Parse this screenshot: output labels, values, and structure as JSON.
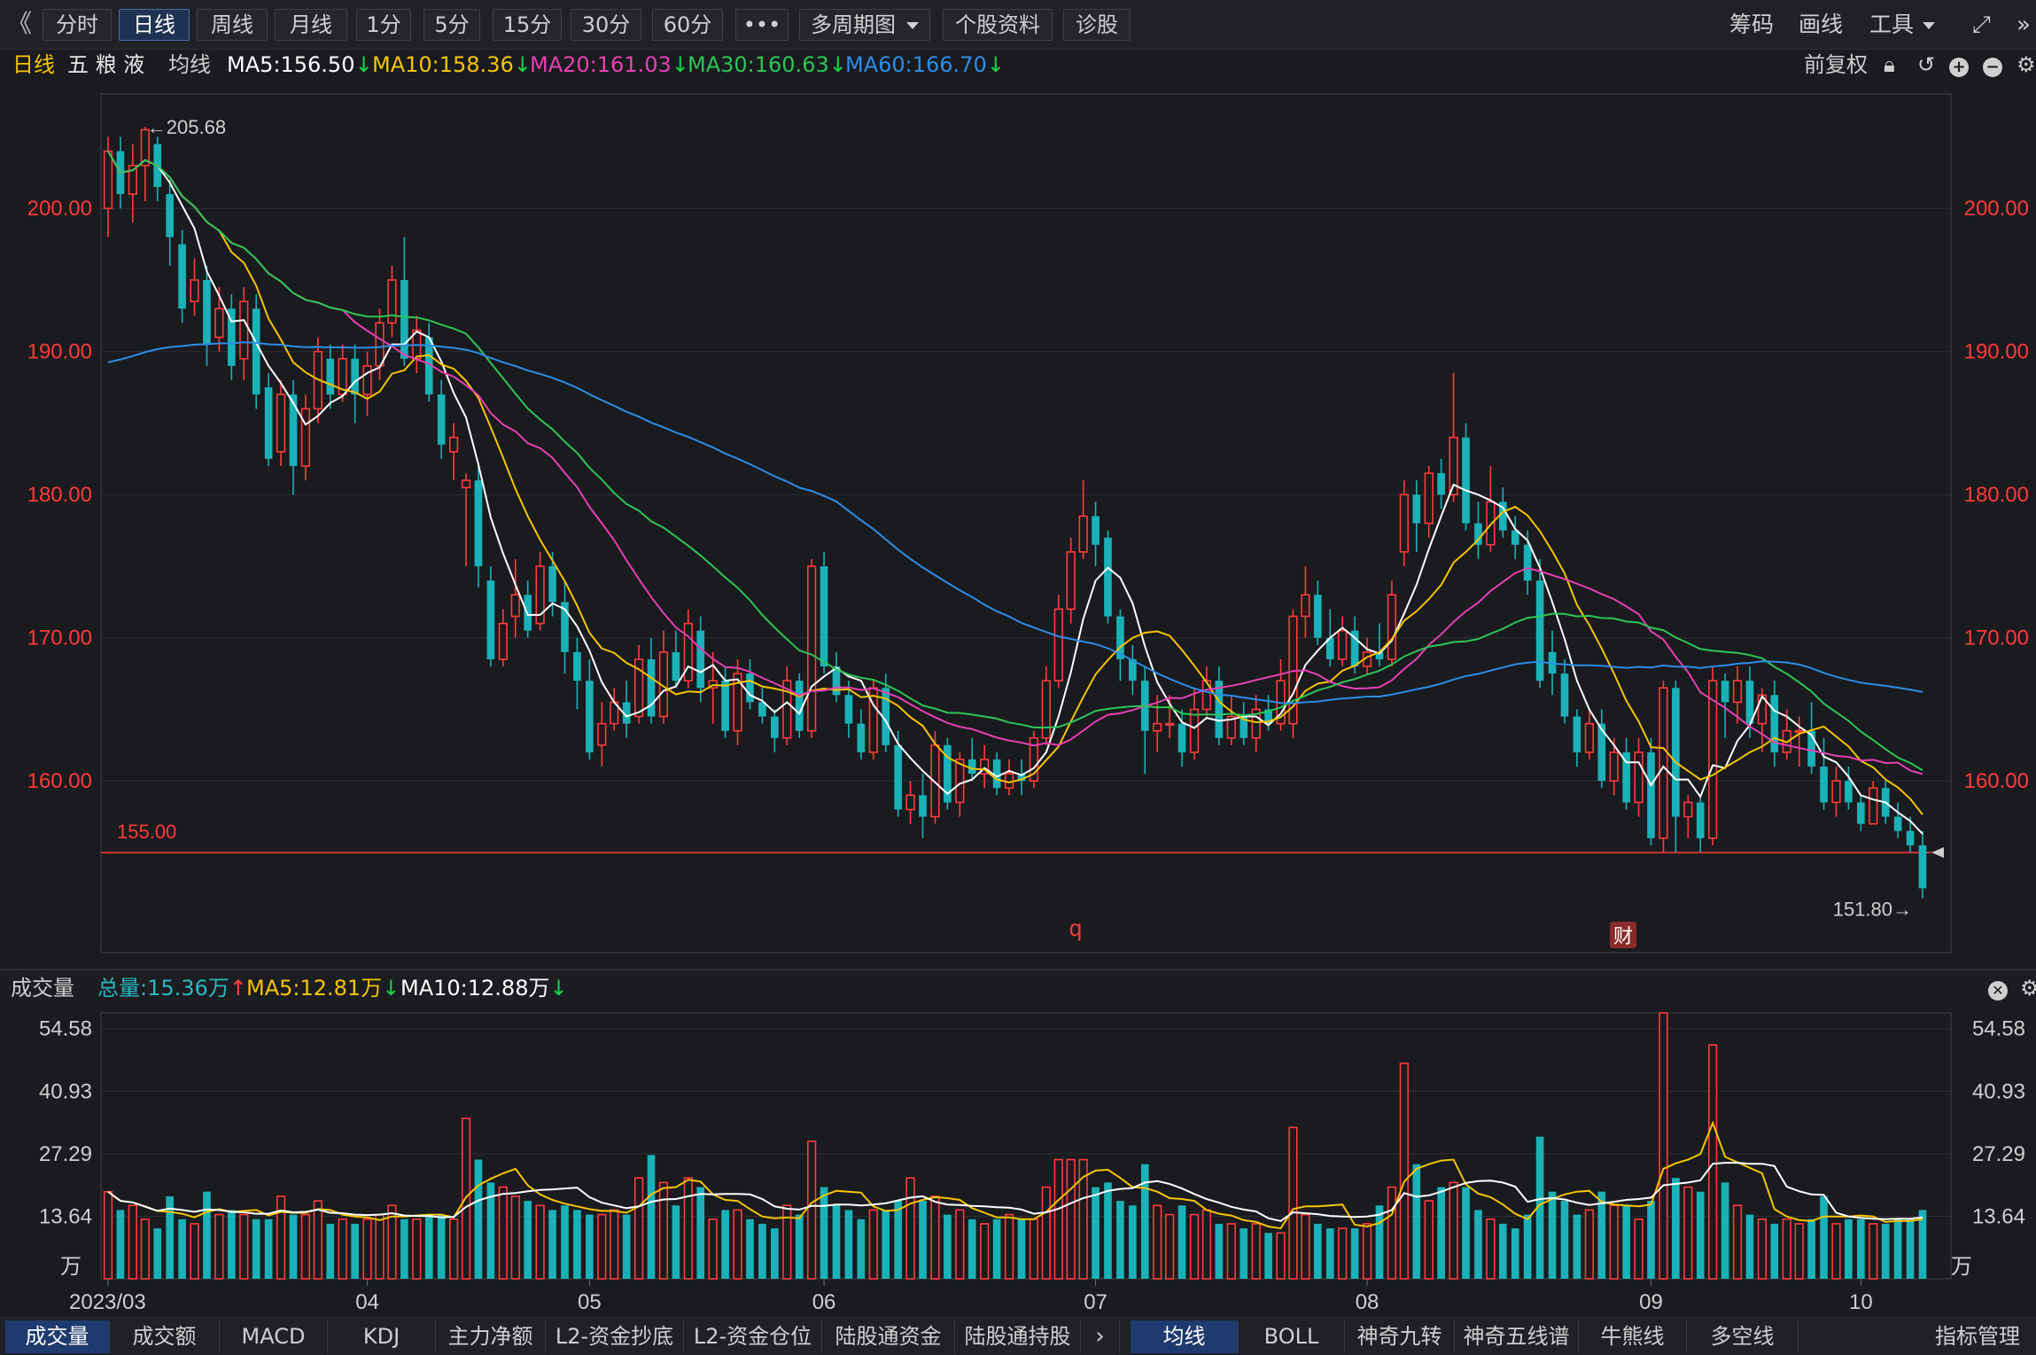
{
  "toolbar": {
    "back": "《",
    "buttons": [
      "分时",
      "日线",
      "周线",
      "月线",
      "1分",
      "5分",
      "15分",
      "30分",
      "60分",
      "•••",
      "多周期图",
      "个股资料",
      "诊股"
    ],
    "right": [
      "筹码",
      "画线",
      "工具"
    ]
  },
  "info": {
    "period": "日线",
    "stock_name": "五 粮 液",
    "ma_label": "均线",
    "ma5": "MA5:156.50",
    "ma10": "MA10:158.36",
    "ma20": "MA20:161.03",
    "ma30": "MA30:160.63",
    "ma60": "MA60:166.70",
    "adjust": "前复权"
  },
  "colors": {
    "up": "#ff3b3b",
    "down": "#1ab2b8",
    "ma5": "#ffffff",
    "ma10": "#f5c400",
    "ma20": "#e640b4",
    "ma30": "#2ec456",
    "ma60": "#2d8de6",
    "axis": "#ff3a3a",
    "grid": "#2e2f35"
  },
  "price_axis": {
    "labels": [
      "200.00",
      "190.00",
      "180.00",
      "170.00",
      "160.00"
    ],
    "values": [
      200,
      190,
      180,
      170,
      160
    ]
  },
  "annotations": {
    "high": "←205.68",
    "low": "151.80→",
    "support": "155.00",
    "marker_q": "q",
    "marker_cai": "财"
  },
  "volume": {
    "title": "成交量",
    "total": "总量:15.36万",
    "ma5": "MA5:12.81万",
    "ma10": "MA10:12.88万",
    "axis_labels": [
      "54.58",
      "40.93",
      "27.29",
      "13.64",
      "万"
    ],
    "axis_values": [
      54.58,
      40.93,
      27.29,
      13.64
    ]
  },
  "x_axis": {
    "labels": [
      "2023/03",
      "04",
      "05",
      "06",
      "07",
      "08",
      "09",
      "10"
    ]
  },
  "tabs_left": [
    "成交量",
    "成交额",
    "MACD",
    "KDJ",
    "主力净额",
    "L2-资金抄底",
    "L2-资金仓位",
    "陆股通资金",
    "陆股通持股"
  ],
  "tabs_right": [
    "均线",
    "BOLL",
    "神奇九转",
    "神奇五线谱",
    "牛熊线",
    "多空线"
  ],
  "tabs_manage": "指标管理",
  "chart_data": {
    "type": "candlestick",
    "title": "五粮液 日线",
    "ylim": [
      148,
      208
    ],
    "days": [
      [
        200.0,
        204.0,
        205.0,
        198.0,
        19
      ],
      [
        204.0,
        201.0,
        205.0,
        200.0,
        15
      ],
      [
        201.0,
        203.0,
        204.5,
        199.0,
        16
      ],
      [
        203.0,
        205.5,
        205.7,
        200.5,
        13
      ],
      [
        204.5,
        201.5,
        205.0,
        200.5,
        11
      ],
      [
        201.0,
        198.0,
        202.0,
        196.0,
        18
      ],
      [
        197.5,
        193.0,
        198.5,
        192.0,
        13
      ],
      [
        193.5,
        195.0,
        196.5,
        192.5,
        12
      ],
      [
        195.0,
        190.5,
        196.0,
        189.0,
        19
      ],
      [
        191.0,
        193.0,
        194.5,
        190.0,
        14
      ],
      [
        193.0,
        189.0,
        194.0,
        188.0,
        15
      ],
      [
        189.5,
        193.5,
        194.5,
        188.0,
        14
      ],
      [
        193.0,
        187.0,
        194.0,
        186.0,
        13
      ],
      [
        187.5,
        182.5,
        188.5,
        182.0,
        13
      ],
      [
        183.0,
        187.0,
        188.0,
        182.0,
        18
      ],
      [
        187.0,
        182.0,
        188.0,
        180.0,
        14
      ],
      [
        182.0,
        186.0,
        187.0,
        181.0,
        14
      ],
      [
        186.0,
        190.0,
        191.0,
        185.0,
        17
      ],
      [
        189.5,
        187.0,
        190.5,
        186.0,
        12
      ],
      [
        187.0,
        189.5,
        190.5,
        186.5,
        13
      ],
      [
        189.5,
        187.0,
        190.5,
        185.0,
        12
      ],
      [
        187.0,
        189.0,
        190.0,
        185.5,
        13
      ],
      [
        189.0,
        192.0,
        193.0,
        188.0,
        14
      ],
      [
        192.0,
        195.0,
        196.0,
        191.0,
        16
      ],
      [
        195.0,
        189.5,
        198.0,
        189.0,
        13
      ],
      [
        189.5,
        191.5,
        192.5,
        188.5,
        13
      ],
      [
        191.0,
        187.0,
        192.0,
        186.5,
        14
      ],
      [
        187.0,
        183.5,
        188.0,
        182.5,
        14
      ],
      [
        183.0,
        184.0,
        185.0,
        181.0,
        13
      ],
      [
        180.5,
        181.0,
        181.5,
        175.0,
        35
      ],
      [
        181.0,
        175.0,
        182.0,
        173.5,
        26
      ],
      [
        174.0,
        168.5,
        175.0,
        168.0,
        21
      ],
      [
        168.5,
        171.0,
        172.0,
        168.0,
        20
      ],
      [
        171.5,
        173.0,
        175.5,
        170.0,
        18
      ],
      [
        173.0,
        170.5,
        174.0,
        170.0,
        17
      ],
      [
        171.0,
        175.0,
        176.0,
        170.5,
        16
      ],
      [
        175.0,
        172.5,
        176.0,
        171.5,
        15
      ],
      [
        172.5,
        169.0,
        174.0,
        167.5,
        16
      ],
      [
        169.0,
        167.0,
        170.0,
        165.0,
        15
      ],
      [
        167.0,
        162.0,
        168.5,
        161.5,
        14
      ],
      [
        162.5,
        164.0,
        165.5,
        161.0,
        14
      ],
      [
        164.0,
        165.5,
        166.5,
        163.5,
        15
      ],
      [
        165.5,
        164.0,
        167.0,
        163.0,
        14
      ],
      [
        164.5,
        168.5,
        169.5,
        164.0,
        22
      ],
      [
        168.5,
        164.5,
        170.0,
        164.0,
        27
      ],
      [
        164.5,
        169.0,
        170.5,
        164.0,
        21
      ],
      [
        169.0,
        167.0,
        170.5,
        166.5,
        16
      ],
      [
        167.0,
        171.0,
        172.0,
        166.5,
        22
      ],
      [
        170.5,
        166.5,
        171.5,
        165.5,
        20
      ],
      [
        166.5,
        167.0,
        169.0,
        164.0,
        13
      ],
      [
        167.0,
        163.5,
        168.0,
        163.0,
        15
      ],
      [
        163.5,
        167.5,
        168.5,
        162.5,
        15
      ],
      [
        167.5,
        165.5,
        168.5,
        165.0,
        13
      ],
      [
        165.5,
        164.5,
        166.5,
        164.0,
        12
      ],
      [
        164.5,
        163.0,
        165.0,
        162.0,
        11
      ],
      [
        163.0,
        167.0,
        168.0,
        162.5,
        16
      ],
      [
        167.0,
        163.5,
        167.5,
        163.0,
        14
      ],
      [
        163.5,
        175.0,
        175.5,
        163.0,
        30
      ],
      [
        175.0,
        168.0,
        176.0,
        167.5,
        20
      ],
      [
        168.0,
        166.0,
        169.0,
        165.5,
        16
      ],
      [
        166.0,
        164.0,
        167.0,
        163.0,
        15
      ],
      [
        164.0,
        162.0,
        165.0,
        161.5,
        13
      ],
      [
        162.0,
        166.5,
        167.0,
        161.5,
        15
      ],
      [
        166.5,
        162.5,
        167.5,
        162.0,
        15
      ],
      [
        162.5,
        158.0,
        163.5,
        157.5,
        17
      ],
      [
        158.0,
        159.0,
        160.0,
        157.0,
        22
      ],
      [
        159.0,
        157.5,
        160.5,
        156.0,
        17
      ],
      [
        157.5,
        162.5,
        163.5,
        157.0,
        18
      ],
      [
        162.5,
        158.5,
        163.0,
        158.0,
        14
      ],
      [
        158.5,
        161.5,
        162.0,
        157.5,
        15
      ],
      [
        161.5,
        160.5,
        163.0,
        160.0,
        13
      ],
      [
        160.5,
        161.5,
        162.5,
        159.5,
        12
      ],
      [
        161.5,
        159.5,
        162.0,
        159.0,
        13
      ],
      [
        159.5,
        160.5,
        161.5,
        159.0,
        14
      ],
      [
        160.5,
        160.0,
        161.5,
        159.0,
        13
      ],
      [
        160.0,
        163.0,
        163.5,
        159.5,
        13
      ],
      [
        163.0,
        167.0,
        168.0,
        162.5,
        20
      ],
      [
        167.0,
        172.0,
        173.0,
        166.5,
        26
      ],
      [
        172.0,
        176.0,
        177.0,
        171.0,
        26
      ],
      [
        176.0,
        178.5,
        181.0,
        175.5,
        26
      ],
      [
        178.5,
        176.5,
        179.5,
        175.0,
        20
      ],
      [
        177.0,
        171.5,
        177.5,
        171.0,
        21
      ],
      [
        171.5,
        168.5,
        172.0,
        167.0,
        17
      ],
      [
        168.5,
        167.0,
        169.5,
        166.0,
        16
      ],
      [
        167.0,
        163.5,
        168.0,
        160.5,
        25
      ],
      [
        163.5,
        164.0,
        166.0,
        162.0,
        16
      ],
      [
        164.0,
        164.0,
        166.0,
        163.0,
        14
      ],
      [
        164.0,
        162.0,
        165.0,
        161.0,
        16
      ],
      [
        162.0,
        165.0,
        166.5,
        161.5,
        14
      ],
      [
        165.0,
        167.0,
        168.0,
        164.5,
        15
      ],
      [
        167.0,
        163.0,
        168.0,
        162.5,
        12
      ],
      [
        163.0,
        164.5,
        166.0,
        162.5,
        12
      ],
      [
        164.5,
        163.0,
        165.5,
        162.5,
        11
      ],
      [
        163.0,
        165.0,
        166.0,
        162.0,
        12
      ],
      [
        165.0,
        164.0,
        166.0,
        163.5,
        10
      ],
      [
        164.0,
        167.0,
        168.5,
        163.5,
        10
      ],
      [
        164.0,
        171.5,
        172.0,
        163.0,
        33
      ],
      [
        171.5,
        173.0,
        175.0,
        170.0,
        14
      ],
      [
        173.0,
        170.0,
        174.0,
        169.5,
        12
      ],
      [
        170.0,
        168.5,
        172.0,
        168.0,
        11
      ],
      [
        168.5,
        170.5,
        171.5,
        168.0,
        11
      ],
      [
        170.5,
        168.0,
        171.5,
        167.5,
        11
      ],
      [
        168.0,
        169.0,
        170.0,
        167.5,
        12
      ],
      [
        169.0,
        168.5,
        171.0,
        168.0,
        16
      ],
      [
        168.5,
        173.0,
        174.0,
        168.0,
        20
      ],
      [
        176.0,
        180.0,
        181.0,
        175.0,
        47
      ],
      [
        180.0,
        178.0,
        181.0,
        176.0,
        25
      ],
      [
        178.0,
        181.5,
        182.0,
        177.0,
        17
      ],
      [
        181.5,
        180.0,
        182.5,
        179.0,
        20
      ],
      [
        180.0,
        184.0,
        188.5,
        179.5,
        21
      ],
      [
        184.0,
        178.0,
        185.0,
        177.5,
        20
      ],
      [
        178.0,
        176.5,
        179.5,
        175.5,
        15
      ],
      [
        176.5,
        179.5,
        182.0,
        176.0,
        13
      ],
      [
        179.5,
        177.5,
        180.5,
        177.0,
        12
      ],
      [
        177.5,
        176.5,
        178.5,
        175.5,
        11
      ],
      [
        176.5,
        174.0,
        177.5,
        173.0,
        14
      ],
      [
        174.0,
        167.0,
        175.5,
        166.5,
        31
      ],
      [
        169.0,
        167.5,
        170.5,
        166.0,
        19
      ],
      [
        167.5,
        164.5,
        168.5,
        164.0,
        17
      ],
      [
        164.5,
        162.0,
        165.0,
        161.0,
        14
      ],
      [
        162.0,
        164.0,
        165.0,
        161.5,
        15
      ],
      [
        164.0,
        160.0,
        165.0,
        159.5,
        19
      ],
      [
        160.0,
        162.0,
        163.0,
        159.0,
        16
      ],
      [
        162.0,
        158.5,
        163.0,
        158.0,
        16
      ],
      [
        158.5,
        162.0,
        163.0,
        157.5,
        13
      ],
      [
        162.0,
        156.0,
        163.0,
        155.5,
        17
      ],
      [
        156.0,
        166.5,
        167.0,
        155.0,
        58
      ],
      [
        166.5,
        157.5,
        167.0,
        155.0,
        22
      ],
      [
        157.5,
        158.5,
        159.0,
        156.0,
        20
      ],
      [
        158.5,
        156.0,
        159.0,
        155.0,
        19
      ],
      [
        156.0,
        167.0,
        168.0,
        155.5,
        51
      ],
      [
        167.0,
        165.5,
        167.5,
        163.0,
        21
      ],
      [
        165.5,
        167.0,
        168.0,
        164.0,
        16
      ],
      [
        167.0,
        164.0,
        168.0,
        163.0,
        14
      ],
      [
        164.0,
        166.0,
        166.5,
        162.0,
        13
      ],
      [
        166.0,
        162.0,
        167.0,
        161.0,
        12
      ],
      [
        162.0,
        163.5,
        165.0,
        161.5,
        13
      ],
      [
        163.5,
        163.5,
        164.5,
        161.0,
        12
      ],
      [
        163.5,
        161.0,
        165.5,
        160.5,
        13
      ],
      [
        161.0,
        158.5,
        163.0,
        158.0,
        18
      ],
      [
        158.5,
        160.0,
        161.0,
        157.5,
        12
      ],
      [
        160.0,
        158.5,
        161.0,
        158.0,
        13
      ],
      [
        158.5,
        157.0,
        159.0,
        156.5,
        13
      ],
      [
        157.0,
        159.5,
        160.0,
        157.0,
        12
      ],
      [
        159.5,
        157.5,
        160.0,
        157.0,
        12
      ],
      [
        157.5,
        156.5,
        158.5,
        156.0,
        13
      ],
      [
        156.5,
        155.5,
        157.5,
        155.0,
        13
      ],
      [
        155.5,
        152.5,
        156.5,
        151.8,
        15
      ]
    ]
  }
}
